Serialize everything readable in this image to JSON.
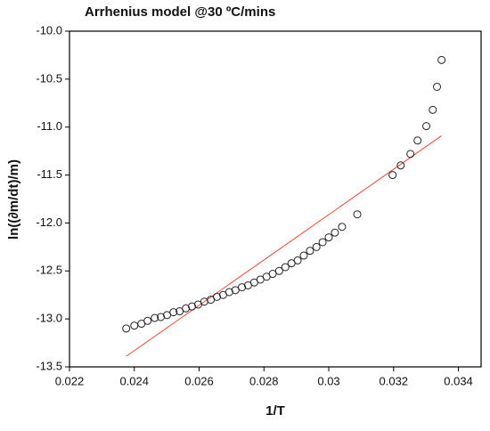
{
  "chart_data": {
    "type": "scatter",
    "title": "Arrhenius model @30 ºC/mins",
    "xlabel": "1/T",
    "ylabel": "ln((∂m/dt)/m)",
    "x": [
      0.02375,
      0.024,
      0.02422,
      0.02441,
      0.02463,
      0.02482,
      0.02501,
      0.02521,
      0.0254,
      0.02559,
      0.02578,
      0.02597,
      0.02616,
      0.02636,
      0.02655,
      0.02674,
      0.02693,
      0.02712,
      0.02732,
      0.02751,
      0.0277,
      0.02789,
      0.02808,
      0.02827,
      0.02847,
      0.02866,
      0.02885,
      0.02904,
      0.02923,
      0.02942,
      0.02962,
      0.02981,
      0.03,
      0.03019,
      0.03041,
      0.03088,
      0.03197,
      0.03222,
      0.03252,
      0.03274,
      0.03301,
      0.03321,
      0.03334,
      0.03348
    ],
    "values": [
      -13.1,
      -13.07,
      -13.05,
      -13.02,
      -12.99,
      -12.98,
      -12.96,
      -12.93,
      -12.92,
      -12.89,
      -12.87,
      -12.85,
      -12.82,
      -12.8,
      -12.77,
      -12.75,
      -12.72,
      -12.7,
      -12.67,
      -12.65,
      -12.62,
      -12.59,
      -12.56,
      -12.53,
      -12.5,
      -12.46,
      -12.42,
      -12.39,
      -12.34,
      -12.29,
      -12.25,
      -12.2,
      -12.15,
      -12.1,
      -12.04,
      -11.91,
      -11.5,
      -11.4,
      -11.28,
      -11.14,
      -10.99,
      -10.82,
      -10.58,
      -10.3
    ],
    "color": "#222222",
    "fit": {
      "x": [
        0.02375,
        0.03348
      ],
      "values": [
        -13.39,
        -11.09
      ],
      "color": "#e8463c"
    },
    "xlim": [
      0.022,
      0.0347
    ],
    "xticks": [
      0.022,
      0.024,
      0.026,
      0.028,
      0.03,
      0.032,
      0.034
    ],
    "ylim": [
      -13.5,
      -10.0
    ],
    "yticks": [
      {
        "value": -13.5,
        "label": "-13.5"
      },
      {
        "value": -13,
        "label": "-13.0"
      },
      {
        "value": -12.5,
        "label": "-12.5"
      },
      {
        "value": -12,
        "label": "-12.0"
      },
      {
        "value": -11.5,
        "label": "-11.5"
      },
      {
        "value": -11,
        "label": "-11.0"
      },
      {
        "value": -10.5,
        "label": "-10.5"
      },
      {
        "value": -10,
        "label": "-10.0"
      }
    ],
    "grid": false
  }
}
